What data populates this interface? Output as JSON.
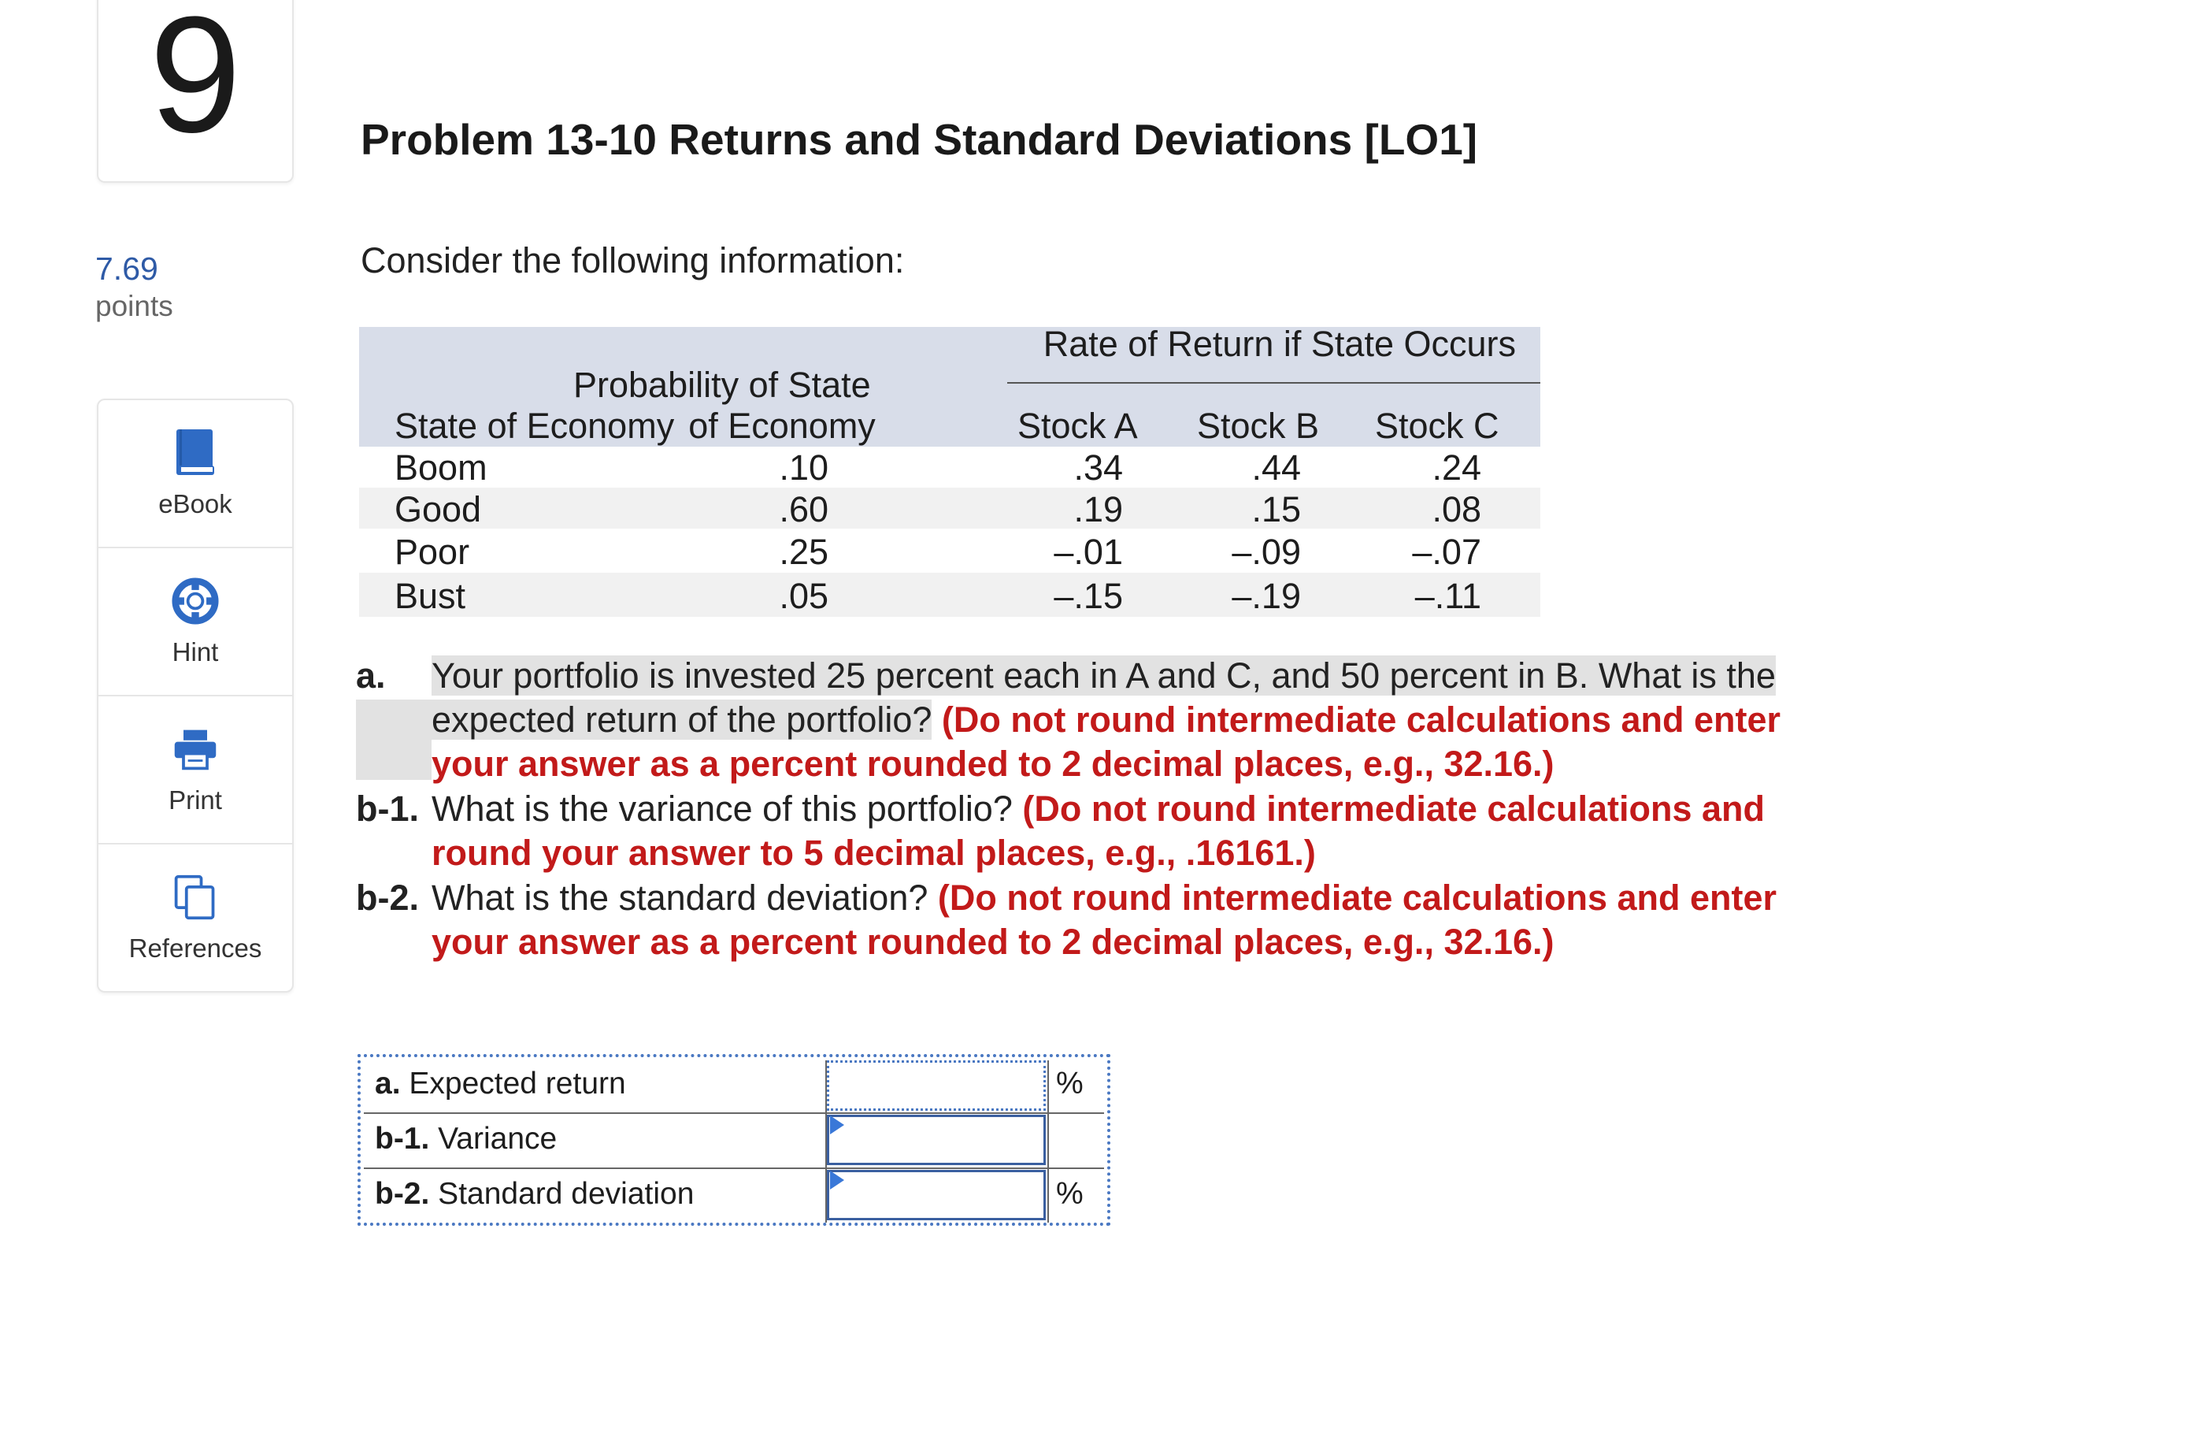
{
  "question": {
    "number": "9",
    "points_value": "7.69",
    "points_label": "points"
  },
  "tools": [
    {
      "label": "eBook",
      "icon": "book-icon"
    },
    {
      "label": "Hint",
      "icon": "lifebuoy-icon"
    },
    {
      "label": "Print",
      "icon": "printer-icon"
    },
    {
      "label": "References",
      "icon": "copy-icon"
    }
  ],
  "problem": {
    "title": "Problem 13-10 Returns and Standard Deviations [LO1]",
    "intro": "Consider the following information:"
  },
  "table": {
    "group_header": "Rate of Return if State Occurs",
    "col_state": "State of Economy",
    "col_prob_line1": "Probability of State",
    "col_prob_line2": "of Economy",
    "col_a": "Stock A",
    "col_b": "Stock B",
    "col_c": "Stock C",
    "rows": [
      {
        "state": "Boom",
        "prob": ".10",
        "a": ".34",
        "b": ".44",
        "c": ".24"
      },
      {
        "state": "Good",
        "prob": ".60",
        "a": ".19",
        "b": ".15",
        "c": ".08"
      },
      {
        "state": "Poor",
        "prob": ".25",
        "a": "–.01",
        "b": "–.09",
        "c": "–.07"
      },
      {
        "state": "Bust",
        "prob": ".05",
        "a": "–.15",
        "b": "–.19",
        "c": "–.11"
      }
    ]
  },
  "questions": [
    {
      "label": "a.",
      "text": "Your portfolio is invested 25 percent each in A and C, and 50 percent in B. What is the expected return of the portfolio?",
      "instruction": "(Do not round intermediate calculations and enter your answer as a percent rounded to 2 decimal places, e.g., 32.16.)"
    },
    {
      "label": "b-1.",
      "text": "What is the variance of this portfolio?",
      "instruction": "(Do not round intermediate calculations and round your answer to 5 decimal places, e.g., .16161.)"
    },
    {
      "label": "b-2.",
      "text": "What is the standard deviation?",
      "instruction": "(Do not round intermediate calculations and enter your answer as a percent rounded to 2 decimal places, e.g., 32.16.)"
    }
  ],
  "answers": [
    {
      "label_bold": "a.",
      "label_rest": " Expected return",
      "value": "",
      "unit": "%"
    },
    {
      "label_bold": "b-1.",
      "label_rest": " Variance",
      "value": "",
      "unit": ""
    },
    {
      "label_bold": "b-2.",
      "label_rest": " Standard deviation",
      "value": "",
      "unit": "%"
    }
  ],
  "colors": {
    "accent": "#2e5aa6",
    "instruction_red": "#c21a1a",
    "header_bg": "#d8dde9",
    "stripe": "#f1f1f1"
  }
}
